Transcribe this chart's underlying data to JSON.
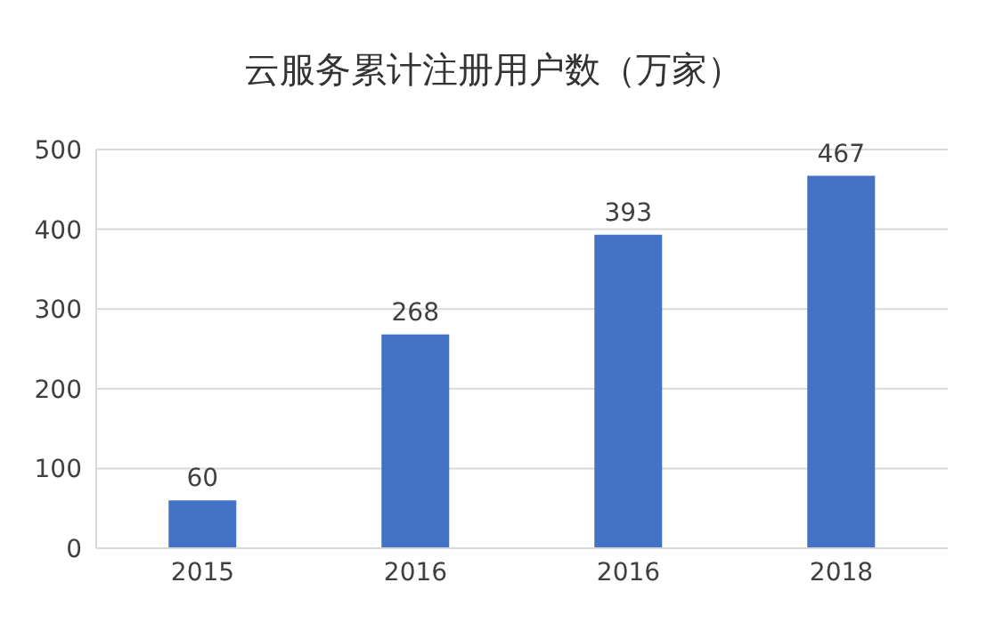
{
  "chart_data": {
    "type": "bar",
    "title": "云服务累计注册用户数（万家）",
    "categories": [
      "2015",
      "2016",
      "2016",
      "2018"
    ],
    "values": [
      60,
      268,
      393,
      467
    ],
    "color": "#4472c4",
    "ylim": [
      0,
      500
    ],
    "yticks": [
      0,
      100,
      200,
      300,
      400,
      500
    ],
    "grid": "y",
    "data_labels": true
  }
}
